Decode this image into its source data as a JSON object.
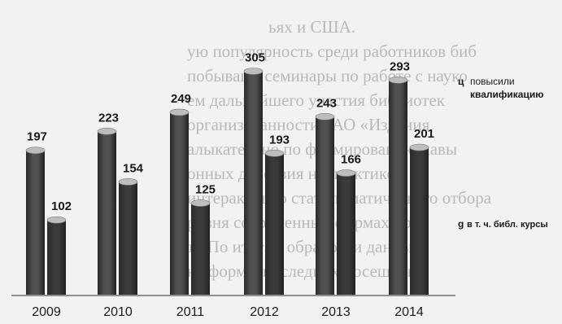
{
  "colors": {
    "background": "#f2f2f2",
    "bar_series_1": "#505050",
    "bar_series_2": "#3a3a3a",
    "bar_top": "#bdbdbd",
    "label": "#1a1a1a",
    "axis": "#555555",
    "background_text": "#bcbcbc"
  },
  "chart_data": {
    "type": "bar",
    "categories": [
      "2009",
      "2010",
      "2011",
      "2012",
      "2013",
      "2014"
    ],
    "series": [
      {
        "name": "ц повысили квалификацию",
        "values": [
          197,
          223,
          249,
          305,
          243,
          293
        ]
      },
      {
        "name": "g в т. ч. библ. курсы",
        "values": [
          102,
          154,
          125,
          193,
          166,
          201
        ]
      }
    ],
    "legend": {
      "placement": "right",
      "items": [
        {
          "marker": "ц",
          "line1": "повысили",
          "line2": "квалификацию"
        },
        {
          "marker": "g",
          "line1": "в т. ч. библ. курсы",
          "line2": ""
        }
      ]
    },
    "data_labels": true,
    "ylim": [
      0,
      320
    ],
    "grid": false,
    "style": "3d-cylinder"
  },
  "background_text": [
    "ьях и США.",
    "ую популярность среди работников биб",
    "побывают семинары по работе с науко",
    "ем дальнейшего участия библиотек",
    "организованности ЗАО «Издания",
    "алыкательно по формированию навы",
    "онных действия на практике",
    "интерактивно стать тематического отбора",
    "ровня современных формах пред",
    "ту По итогам обработки данных",
    "на формы последних посещений"
  ]
}
